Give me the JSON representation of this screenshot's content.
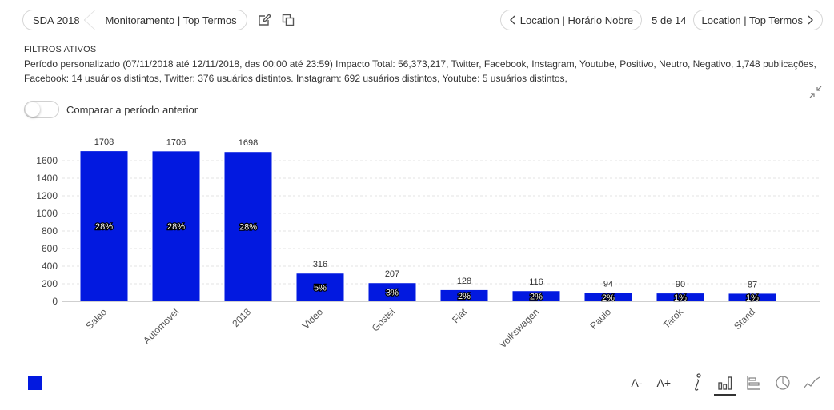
{
  "header": {
    "breadcrumb": [
      "SDA 2018",
      "Monitoramento | Top Termos"
    ],
    "prev_label": "Location | Horário Nobre",
    "page_indicator": "5 de 14",
    "next_label": "Location | Top Termos"
  },
  "filters": {
    "title": "FILTROS ATIVOS",
    "text": "Período personalizado (07/11/2018 até 12/11/2018, das 00:00 até 23:59) Impacto Total: 56,373,217, Twitter, Facebook, Instagram, Youtube, Positivo, Neutro, Negativo, 1,748 publicações, Facebook: 14 usuários distintos, Twitter: 376 usuários distintos. Instagram: 692 usuários distintos, Youtube: 5 usuários distintos,"
  },
  "compare": {
    "label": "Comparar a período anterior",
    "enabled": false
  },
  "toolbar": {
    "font_decrease": "A-",
    "font_increase": "A+"
  },
  "icons": [
    "edit-icon",
    "copy-icon",
    "chevron-left-icon",
    "chevron-right-icon",
    "collapse-icon",
    "info-icon",
    "bar-chart-icon",
    "horizontal-bar-icon",
    "pie-chart-icon",
    "line-chart-icon"
  ],
  "colors": {
    "bar": "#0219e0",
    "grid": "#e3e3e3",
    "text": "#333333"
  },
  "chart_data": {
    "type": "bar",
    "categories": [
      "Salao",
      "Automovel",
      "2018",
      "Video",
      "Gostei",
      "Fiat",
      "Volkswagen",
      "Paulo",
      "Tarok",
      "Stand"
    ],
    "values": [
      1708,
      1706,
      1698,
      316,
      207,
      128,
      116,
      94,
      90,
      87
    ],
    "percent_labels": [
      "28%",
      "28%",
      "28%",
      "5%",
      "3%",
      "2%",
      "2%",
      "2%",
      "1%",
      "1%"
    ],
    "yticks": [
      0,
      200,
      400,
      600,
      800,
      1000,
      1200,
      1400,
      1600
    ],
    "ylim": [
      0,
      1800
    ],
    "grid": true,
    "legend": "bottom-left"
  }
}
